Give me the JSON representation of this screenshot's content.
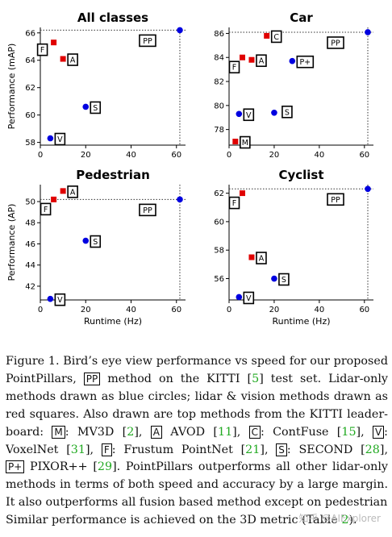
{
  "chart_data": [
    {
      "type": "scatter",
      "title": "All classes",
      "ylabel": "Performance (mAP)",
      "xlabel": "",
      "xlim": [
        0,
        64
      ],
      "ylim": [
        57.8,
        66.4
      ],
      "xticks": [
        "0",
        "20",
        "40",
        "60"
      ],
      "xtick_values": [
        0,
        20,
        40,
        60
      ],
      "yticks": [
        "58",
        "60",
        "62",
        "64",
        "66"
      ],
      "ytick_values": [
        58,
        60,
        62,
        64,
        66
      ],
      "reference_lines": {
        "x": 61.5,
        "y": 66.2
      },
      "points": [
        {
          "label": "F",
          "x": 5.9,
          "y": 65.3,
          "marker": "square",
          "color": "#e00000",
          "label_side": "left"
        },
        {
          "label": "A",
          "x": 10.0,
          "y": 64.1,
          "marker": "square",
          "color": "#e00000",
          "label_side": "right"
        },
        {
          "label": "S",
          "x": 20.0,
          "y": 60.6,
          "marker": "circle",
          "color": "#0000e0",
          "label_side": "right"
        },
        {
          "label": "V",
          "x": 4.4,
          "y": 58.3,
          "marker": "circle",
          "color": "#0000e0",
          "label_side": "right"
        },
        {
          "label": "PP",
          "x": 61.5,
          "y": 66.2,
          "marker": "circle",
          "color": "#0000e0",
          "label_side": "left-below"
        }
      ]
    },
    {
      "type": "scatter",
      "title": "Car",
      "ylabel": "",
      "xlabel": "",
      "xlim": [
        0,
        64
      ],
      "ylim": [
        76.7,
        86.5
      ],
      "xticks": [
        "0",
        "20",
        "40",
        "60"
      ],
      "xtick_values": [
        0,
        20,
        40,
        60
      ],
      "yticks": [
        "78",
        "80",
        "82",
        "84",
        "86"
      ],
      "ytick_values": [
        78,
        80,
        82,
        84,
        86
      ],
      "reference_lines": {
        "x": 61.5,
        "y": 86.1
      },
      "points": [
        {
          "label": "C",
          "x": 16.7,
          "y": 85.8,
          "marker": "square",
          "color": "#e00000",
          "label_side": "right"
        },
        {
          "label": "F",
          "x": 5.9,
          "y": 84.0,
          "marker": "square",
          "color": "#e00000",
          "label_side": "left-below"
        },
        {
          "label": "A",
          "x": 10.0,
          "y": 83.8,
          "marker": "square",
          "color": "#e00000",
          "label_side": "right"
        },
        {
          "label": "P+",
          "x": 28.0,
          "y": 83.7,
          "marker": "circle",
          "color": "#0000e0",
          "label_side": "right"
        },
        {
          "label": "V",
          "x": 4.4,
          "y": 79.3,
          "marker": "circle",
          "color": "#0000e0",
          "label_side": "right"
        },
        {
          "label": "S",
          "x": 20.0,
          "y": 79.4,
          "marker": "circle",
          "color": "#0000e0",
          "label_side": "right-far"
        },
        {
          "label": "M",
          "x": 2.8,
          "y": 77.0,
          "marker": "square",
          "color": "#e00000",
          "label_side": "right"
        },
        {
          "label": "PP",
          "x": 61.5,
          "y": 86.1,
          "marker": "circle",
          "color": "#0000e0",
          "label_side": "left-below"
        }
      ]
    },
    {
      "type": "scatter",
      "title": "Pedestrian",
      "ylabel": "Performance (AP)",
      "xlabel": "Runtime (Hz)",
      "xlim": [
        0,
        64
      ],
      "ylim": [
        40.7,
        51.6
      ],
      "xticks": [
        "0",
        "20",
        "40",
        "60"
      ],
      "xtick_values": [
        0,
        20,
        40,
        60
      ],
      "yticks": [
        "42",
        "44",
        "46",
        "48",
        "50"
      ],
      "ytick_values": [
        42,
        44,
        46,
        48,
        50
      ],
      "reference_lines": {
        "x": 61.5,
        "y": 50.2
      },
      "points": [
        {
          "label": "A",
          "x": 10.0,
          "y": 51.0,
          "marker": "square",
          "color": "#e00000",
          "label_side": "right"
        },
        {
          "label": "F",
          "x": 5.9,
          "y": 50.2,
          "marker": "square",
          "color": "#e00000",
          "label_side": "left-below"
        },
        {
          "label": "S",
          "x": 20.0,
          "y": 46.3,
          "marker": "circle",
          "color": "#0000e0",
          "label_side": "right"
        },
        {
          "label": "V",
          "x": 4.4,
          "y": 40.8,
          "marker": "circle",
          "color": "#0000e0",
          "label_side": "right"
        },
        {
          "label": "PP",
          "x": 61.5,
          "y": 50.2,
          "marker": "circle",
          "color": "#0000e0",
          "label_side": "left-below"
        }
      ]
    },
    {
      "type": "scatter",
      "title": "Cyclist",
      "ylabel": "",
      "xlabel": "Runtime (Hz)",
      "xlim": [
        0,
        64
      ],
      "ylim": [
        54.5,
        62.6
      ],
      "xticks": [
        "0",
        "20",
        "40",
        "60"
      ],
      "xtick_values": [
        0,
        20,
        40,
        60
      ],
      "yticks": [
        "56",
        "58",
        "60",
        "62"
      ],
      "ytick_values": [
        56,
        58,
        60,
        62
      ],
      "reference_lines": {
        "x": 61.5,
        "y": 62.3
      },
      "points": [
        {
          "label": "F",
          "x": 5.9,
          "y": 62.0,
          "marker": "square",
          "color": "#e00000",
          "label_side": "left-below"
        },
        {
          "label": "A",
          "x": 10.0,
          "y": 57.5,
          "marker": "square",
          "color": "#e00000",
          "label_side": "right"
        },
        {
          "label": "S",
          "x": 20.0,
          "y": 56.0,
          "marker": "circle",
          "color": "#0000e0",
          "label_side": "right"
        },
        {
          "label": "V",
          "x": 4.4,
          "y": 54.7,
          "marker": "circle",
          "color": "#0000e0",
          "label_side": "right"
        },
        {
          "label": "PP",
          "x": 61.5,
          "y": 62.3,
          "marker": "circle",
          "color": "#0000e0",
          "label_side": "left-below"
        }
      ]
    }
  ],
  "caption": {
    "lines": [
      [
        {
          "t": "Figure 1. Bird’s eye view performance vs speed for our proposed"
        }
      ],
      [
        {
          "t": "PointPillars, "
        },
        {
          "box": "PP"
        },
        {
          "t": " method on the KITTI ["
        },
        {
          "ref": "5"
        },
        {
          "t": "] test set.  Lidar-only"
        }
      ],
      [
        {
          "t": "methods drawn as blue circles; lidar & vision methods drawn as"
        }
      ],
      [
        {
          "t": "red squares.  Also drawn are top methods from the KITTI leader-"
        }
      ],
      [
        {
          "t": "board: "
        },
        {
          "box": "M"
        },
        {
          "t": ": MV3D ["
        },
        {
          "ref": "2"
        },
        {
          "t": "], "
        },
        {
          "box": "A"
        },
        {
          "t": " AVOD ["
        },
        {
          "ref": "11"
        },
        {
          "t": "], "
        },
        {
          "box": "C"
        },
        {
          "t": ": ContFuse ["
        },
        {
          "ref": "15"
        },
        {
          "t": "], "
        },
        {
          "box": "V"
        },
        {
          "t": ":"
        }
      ],
      [
        {
          "t": "VoxelNet ["
        },
        {
          "ref": "31"
        },
        {
          "t": "], "
        },
        {
          "box": "F"
        },
        {
          "t": ": Frustum PointNet ["
        },
        {
          "ref": "21"
        },
        {
          "t": "], "
        },
        {
          "box": "S"
        },
        {
          "t": ": SECOND ["
        },
        {
          "ref": "28"
        },
        {
          "t": "],"
        }
      ],
      [
        {
          "box": "P+"
        },
        {
          "t": " PIXOR++ ["
        },
        {
          "ref": "29"
        },
        {
          "t": "]. PointPillars outperforms all other lidar-only"
        }
      ],
      [
        {
          "t": "methods in terms of both speed and accuracy by a large margin."
        }
      ],
      [
        {
          "t": "It also outperforms all fusion based method except on pedestrians."
        }
      ],
      [
        {
          "t": "Similar performance is achieved on the 3D metric (Table "
        },
        {
          "ref": "2"
        },
        {
          "t": ")."
        }
      ]
    ]
  },
  "watermark": "知乎 @AIExplorer"
}
